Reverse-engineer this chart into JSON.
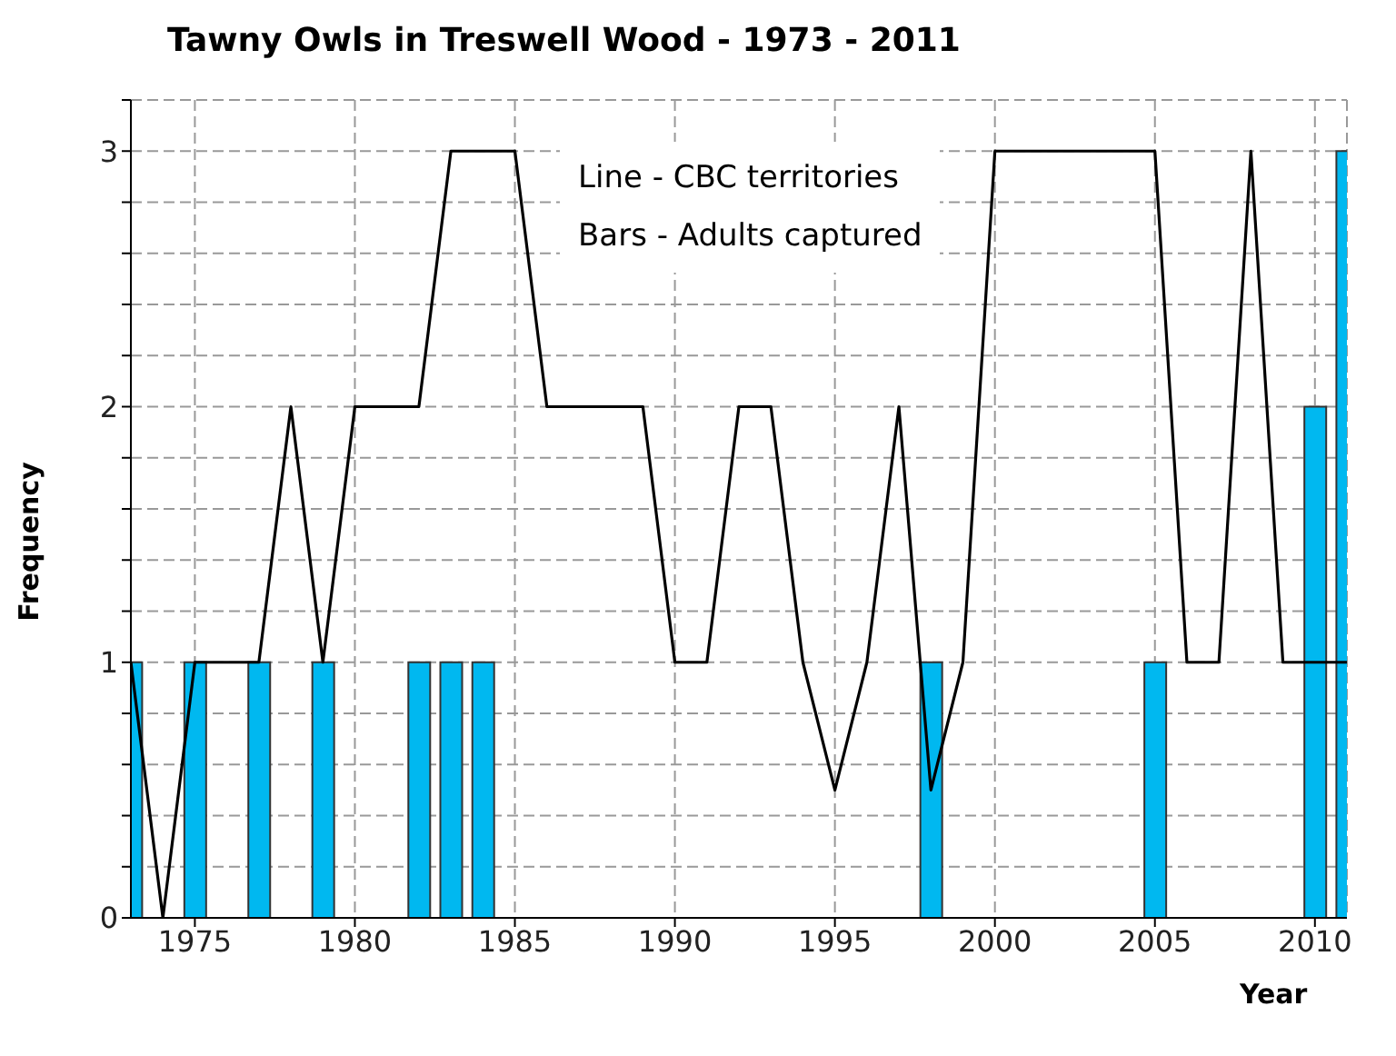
{
  "chart_data": {
    "type": "line",
    "title": "Tawny Owls in Treswell Wood - 1973 - 2011",
    "xlabel": "Year",
    "ylabel": "Frequency",
    "x": [
      1973,
      1974,
      1975,
      1976,
      1977,
      1978,
      1979,
      1980,
      1981,
      1982,
      1983,
      1984,
      1985,
      1986,
      1987,
      1988,
      1989,
      1990,
      1991,
      1992,
      1993,
      1994,
      1995,
      1996,
      1997,
      1998,
      1999,
      2000,
      2001,
      2002,
      2003,
      2004,
      2005,
      2006,
      2007,
      2008,
      2009,
      2010,
      2011
    ],
    "series": [
      {
        "type": "bar",
        "color": "#00b8f0",
        "values": [
          1,
          null,
          1,
          null,
          1,
          null,
          1,
          null,
          null,
          1,
          1,
          1,
          null,
          null,
          null,
          null,
          null,
          null,
          null,
          null,
          null,
          null,
          null,
          null,
          null,
          1,
          null,
          null,
          null,
          null,
          null,
          null,
          1,
          null,
          null,
          null,
          null,
          2,
          3
        ]
      },
      {
        "color": "#000000",
        "values": [
          1,
          0,
          1,
          1,
          1,
          2,
          1,
          2,
          2,
          2,
          3,
          3,
          3,
          2,
          2,
          2,
          2,
          1,
          1,
          2,
          2,
          1,
          0.5,
          1,
          2,
          0.5,
          1,
          3,
          3,
          3,
          3,
          3,
          3,
          1,
          1,
          3,
          1,
          1,
          1
        ]
      }
    ],
    "annotations": [
      "Line - CBC territories",
      "Bars - Adults captured"
    ],
    "xlim": [
      1973,
      2011
    ],
    "xticks": [
      1975,
      1980,
      1985,
      1990,
      1995,
      2000,
      2005,
      2010
    ],
    "ylim": [
      0,
      3.2
    ],
    "yticks": [
      0,
      {
        "value": 0.2,
        "label": null
      },
      {
        "value": 0.4,
        "label": null
      },
      {
        "value": 0.6,
        "label": null
      },
      {
        "value": 0.8,
        "label": null
      },
      1,
      {
        "value": 1.2,
        "label": null
      },
      {
        "value": 1.4,
        "label": null
      },
      {
        "value": 1.6,
        "label": null
      },
      {
        "value": 1.8,
        "label": null
      },
      2,
      {
        "value": 2.2,
        "label": null
      },
      {
        "value": 2.4,
        "label": null
      },
      {
        "value": 2.6,
        "label": null
      },
      {
        "value": 2.8,
        "label": null
      },
      3,
      {
        "value": 3.2,
        "label": null
      }
    ],
    "grid": true,
    "marker": "none",
    "line_style": "solid",
    "legend": false
  }
}
